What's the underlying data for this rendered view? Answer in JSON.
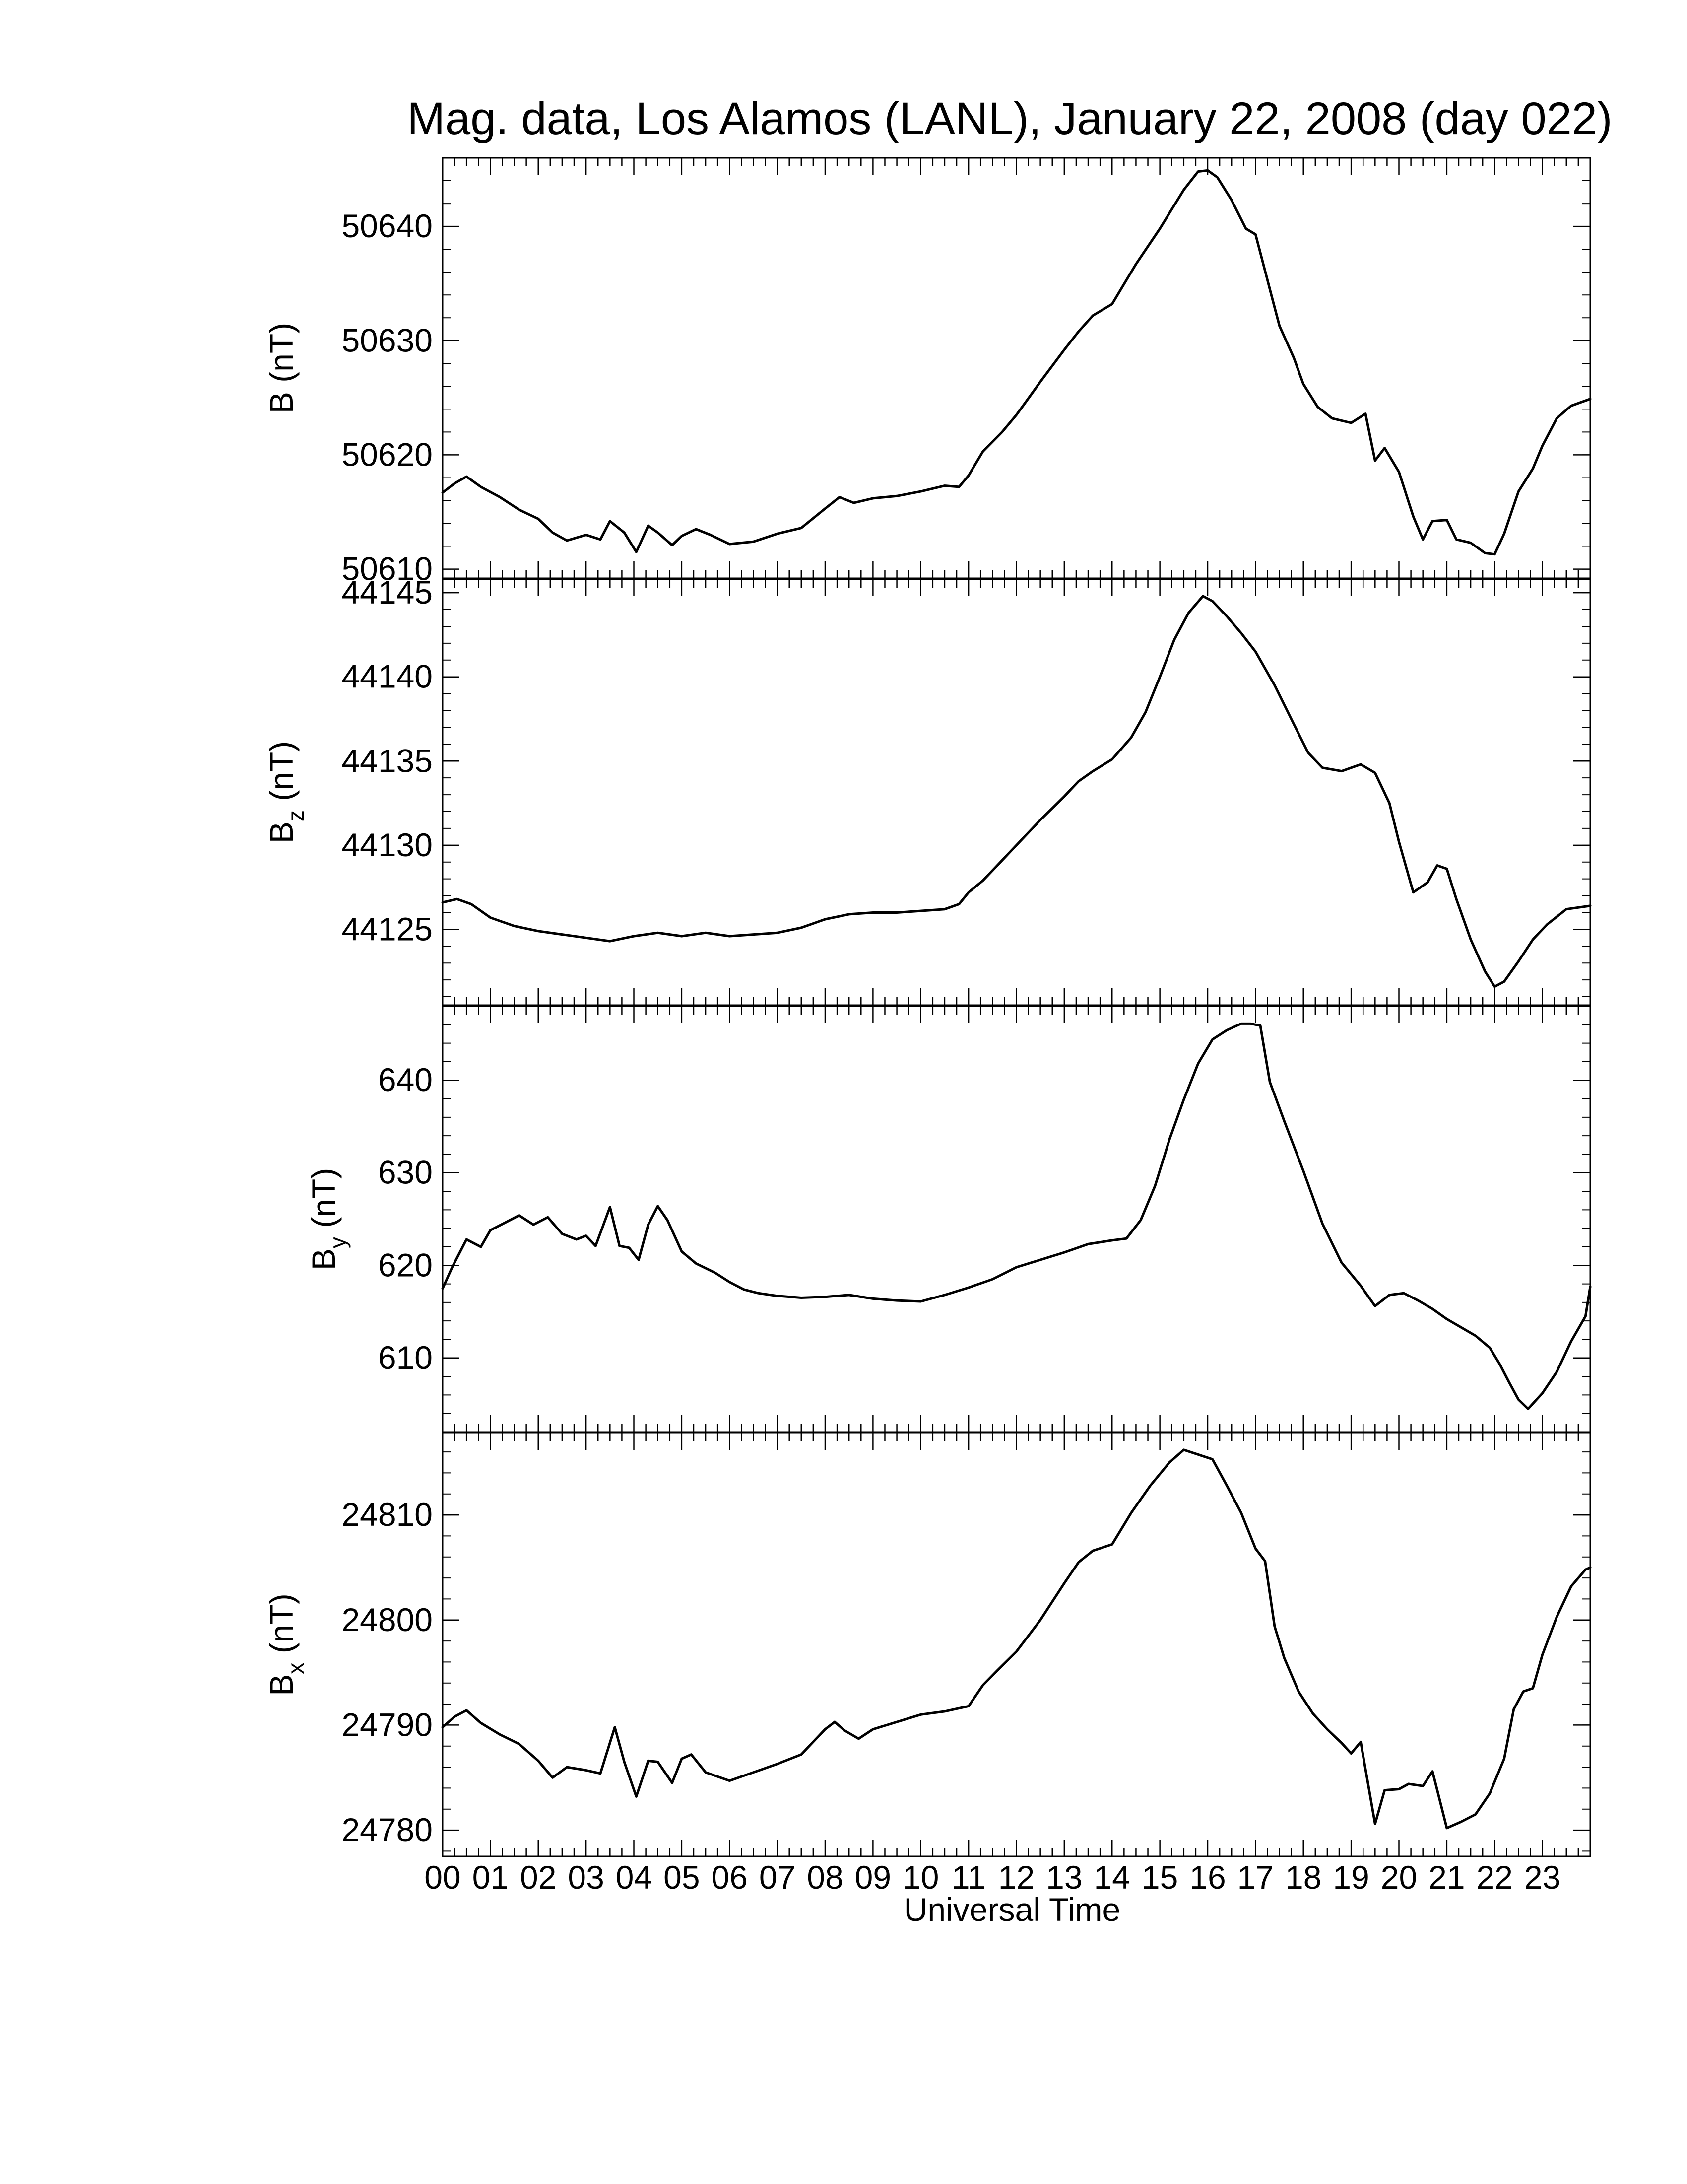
{
  "chart_data": {
    "type": "line",
    "title": "Mag. data, Los Alamos (LANL), January 22, 2008 (day 022)",
    "xlabel": "Universal Time",
    "x_ticks": [
      "00",
      "01",
      "02",
      "03",
      "04",
      "05",
      "06",
      "07",
      "08",
      "09",
      "10",
      "11",
      "12",
      "13",
      "14",
      "15",
      "16",
      "17",
      "18",
      "19",
      "20",
      "21",
      "22",
      "23"
    ],
    "xlim": [
      0,
      24
    ],
    "line_color": "#000000",
    "panels": [
      {
        "ylabel_main": "B",
        "ylabel_sub": "",
        "ylabel_unit": "(nT)",
        "ylim": [
          50609.2,
          50646
        ],
        "yticks": [
          50610,
          50620,
          50630,
          50640
        ],
        "x": [
          0,
          0.25,
          0.5,
          0.8,
          1.2,
          1.6,
          2,
          2.3,
          2.6,
          3,
          3.3,
          3.5,
          3.8,
          4.05,
          4.3,
          4.5,
          4.8,
          5,
          5.3,
          5.6,
          6,
          6.5,
          7,
          7.5,
          8,
          8.3,
          8.6,
          9,
          9.5,
          10,
          10.5,
          10.8,
          11,
          11.3,
          11.7,
          12,
          12.5,
          13,
          13.3,
          13.6,
          14,
          14.5,
          15,
          15.5,
          15.8,
          16,
          16.2,
          16.5,
          16.8,
          17,
          17.3,
          17.5,
          17.8,
          18,
          18.3,
          18.6,
          19,
          19.3,
          19.5,
          19.7,
          20,
          20.3,
          20.5,
          20.7,
          21,
          21.2,
          21.5,
          21.8,
          22,
          22.2,
          22.5,
          22.8,
          23,
          23.3,
          23.6,
          24
        ],
        "y": [
          50616.7,
          50617.5,
          50618.1,
          50617.2,
          50616.3,
          50615.2,
          50614.4,
          50613.2,
          50612.5,
          50613,
          50612.6,
          50614.2,
          50613.2,
          50611.5,
          50613.8,
          50613.2,
          50612.1,
          50612.9,
          50613.5,
          50613,
          50612.2,
          50612.4,
          50613.1,
          50613.6,
          50615.3,
          50616.3,
          50615.8,
          50616.2,
          50616.4,
          50616.8,
          50617.3,
          50617.2,
          50618.2,
          50620.3,
          50622,
          50623.5,
          50626.4,
          50629.2,
          50630.8,
          50632.2,
          50633.2,
          50636.7,
          50639.8,
          50643.2,
          50644.8,
          50644.9,
          50644.3,
          50642.3,
          50639.8,
          50639.3,
          50634.5,
          50631.3,
          50628.5,
          50626.2,
          50624.2,
          50623.2,
          50622.8,
          50623.6,
          50619.5,
          50620.6,
          50618.5,
          50614.6,
          50612.6,
          50614.2,
          50614.3,
          50612.6,
          50612.3,
          50611.4,
          50611.3,
          50613.1,
          50616.8,
          50618.8,
          50620.8,
          50623.2,
          50624.3,
          50624.9
        ]
      },
      {
        "ylabel_main": "B",
        "ylabel_sub": "z",
        "ylabel_unit": "(nT)",
        "ylim": [
          44120.5,
          44145.8
        ],
        "yticks": [
          44125,
          44130,
          44135,
          44140,
          44145
        ],
        "x": [
          0,
          0.3,
          0.6,
          1,
          1.5,
          2,
          2.5,
          3,
          3.5,
          4,
          4.5,
          5,
          5.5,
          6,
          6.5,
          7,
          7.5,
          8,
          8.5,
          9,
          9.5,
          10,
          10.5,
          10.8,
          11,
          11.3,
          11.6,
          12,
          12.5,
          13,
          13.3,
          13.6,
          14,
          14.4,
          14.7,
          15,
          15.3,
          15.6,
          15.9,
          16.1,
          16.4,
          16.7,
          17,
          17.4,
          17.8,
          18.1,
          18.4,
          18.8,
          19.2,
          19.5,
          19.8,
          20,
          20.3,
          20.6,
          20.8,
          21,
          21.2,
          21.5,
          21.8,
          22,
          22.2,
          22.5,
          22.8,
          23.1,
          23.5,
          24
        ],
        "y": [
          44126.6,
          44126.8,
          44126.5,
          44125.7,
          44125.2,
          44124.9,
          44124.7,
          44124.5,
          44124.3,
          44124.6,
          44124.8,
          44124.6,
          44124.8,
          44124.6,
          44124.7,
          44124.8,
          44125.1,
          44125.6,
          44125.9,
          44126,
          44126,
          44126.1,
          44126.2,
          44126.5,
          44127.2,
          44127.9,
          44128.8,
          44130,
          44131.5,
          44132.9,
          44133.8,
          44134.4,
          44135.1,
          44136.4,
          44137.9,
          44140,
          44142.2,
          44143.8,
          44144.8,
          44144.5,
          44143.6,
          44142.6,
          44141.5,
          44139.5,
          44137.2,
          44135.5,
          44134.6,
          44134.4,
          44134.8,
          44134.3,
          44132.5,
          44130.2,
          44127.2,
          44127.8,
          44128.8,
          44128.6,
          44126.8,
          44124.4,
          44122.5,
          44121.6,
          44121.9,
          44123.1,
          44124.4,
          44125.3,
          44126.2,
          44126.4
        ]
      },
      {
        "ylabel_main": "B",
        "ylabel_sub": "y",
        "ylabel_unit": "(nT)",
        "ylim": [
          602,
          648
        ],
        "yticks": [
          610,
          620,
          630,
          640
        ],
        "x": [
          0,
          0.2,
          0.5,
          0.8,
          1,
          1.3,
          1.6,
          1.9,
          2.2,
          2.5,
          2.8,
          3,
          3.2,
          3.5,
          3.7,
          3.9,
          4.1,
          4.3,
          4.5,
          4.7,
          5,
          5.3,
          5.7,
          6,
          6.3,
          6.6,
          7,
          7.5,
          8,
          8.5,
          9,
          9.5,
          10,
          10.5,
          11,
          11.5,
          12,
          12.5,
          13,
          13.5,
          14,
          14.3,
          14.6,
          14.9,
          15.2,
          15.5,
          15.8,
          16.1,
          16.4,
          16.7,
          16.9,
          17.1,
          17.3,
          17.6,
          18,
          18.4,
          18.8,
          19.2,
          19.5,
          19.8,
          20.1,
          20.4,
          20.7,
          21,
          21.3,
          21.6,
          21.9,
          22.1,
          22.3,
          22.5,
          22.7,
          23,
          23.3,
          23.6,
          23.9,
          24
        ],
        "y": [
          617.5,
          619.8,
          622.8,
          622,
          623.8,
          624.6,
          625.4,
          624.4,
          625.2,
          623.4,
          622.8,
          623.2,
          622.1,
          626.3,
          622.1,
          621.9,
          620.6,
          624.4,
          626.4,
          624.9,
          621.5,
          620.2,
          619.2,
          618.2,
          617.4,
          617,
          616.7,
          616.5,
          616.6,
          616.8,
          616.4,
          616.2,
          616.1,
          616.8,
          617.6,
          618.5,
          619.8,
          620.6,
          621.4,
          622.3,
          622.7,
          622.9,
          624.9,
          628.6,
          633.6,
          637.9,
          641.8,
          644.4,
          645.4,
          646.1,
          646.1,
          645.9,
          639.8,
          635.6,
          630.2,
          624.5,
          620.3,
          617.8,
          615.6,
          616.8,
          617,
          616.2,
          615.3,
          614.2,
          613.3,
          612.4,
          611.1,
          609.4,
          607.4,
          605.5,
          604.5,
          606.2,
          608.5,
          611.8,
          614.5,
          617.7
        ]
      },
      {
        "ylabel_main": "B",
        "ylabel_sub": "x",
        "ylabel_unit": "(nT)",
        "ylim": [
          24777.5,
          24817.8
        ],
        "yticks": [
          24780,
          24790,
          24800,
          24810
        ],
        "x": [
          0,
          0.25,
          0.5,
          0.8,
          1.2,
          1.6,
          2,
          2.3,
          2.6,
          3,
          3.3,
          3.6,
          3.8,
          4.05,
          4.3,
          4.5,
          4.8,
          5,
          5.2,
          5.5,
          6,
          6.5,
          7,
          7.5,
          8,
          8.2,
          8.4,
          8.7,
          9,
          9.5,
          10,
          10.5,
          11,
          11.3,
          11.6,
          12,
          12.5,
          13,
          13.3,
          13.6,
          14,
          14.4,
          14.8,
          15.2,
          15.5,
          15.7,
          15.9,
          16.1,
          16.4,
          16.7,
          17,
          17.2,
          17.4,
          17.6,
          17.9,
          18.2,
          18.5,
          18.8,
          19,
          19.2,
          19.5,
          19.7,
          20,
          20.2,
          20.5,
          20.7,
          21,
          21.3,
          21.6,
          21.9,
          22.2,
          22.4,
          22.6,
          22.8,
          23,
          23.3,
          23.6,
          23.9,
          24
        ],
        "y": [
          24789.8,
          24790.8,
          24791.4,
          24790.2,
          24789.1,
          24788.2,
          24786.6,
          24785,
          24786,
          24785.7,
          24785.4,
          24789.8,
          24786.5,
          24783.2,
          24786.6,
          24786.5,
          24784.5,
          24786.8,
          24787.2,
          24785.5,
          24784.7,
          24785.5,
          24786.3,
          24787.2,
          24789.6,
          24790.3,
          24789.5,
          24788.7,
          24789.6,
          24790.3,
          24791,
          24791.3,
          24791.8,
          24793.8,
          24795.2,
          24797,
          24800,
          24803.5,
          24805.5,
          24806.6,
          24807.2,
          24810.2,
          24812.8,
          24815,
          24816.2,
          24815.9,
          24815.6,
          24815.3,
          24812.8,
          24810.2,
          24806.8,
          24805.6,
          24799.4,
          24796.4,
          24793.2,
          24791.1,
          24789.6,
          24788.3,
          24787.3,
          24788.4,
          24780.6,
          24783.8,
          24783.9,
          24784.4,
          24784.2,
          24785.6,
          24780.2,
          24780.8,
          24781.5,
          24783.5,
          24786.8,
          24791.5,
          24793.2,
          24793.5,
          24796.7,
          24800.3,
          24803.2,
          24804.8,
          24805
        ]
      }
    ]
  }
}
